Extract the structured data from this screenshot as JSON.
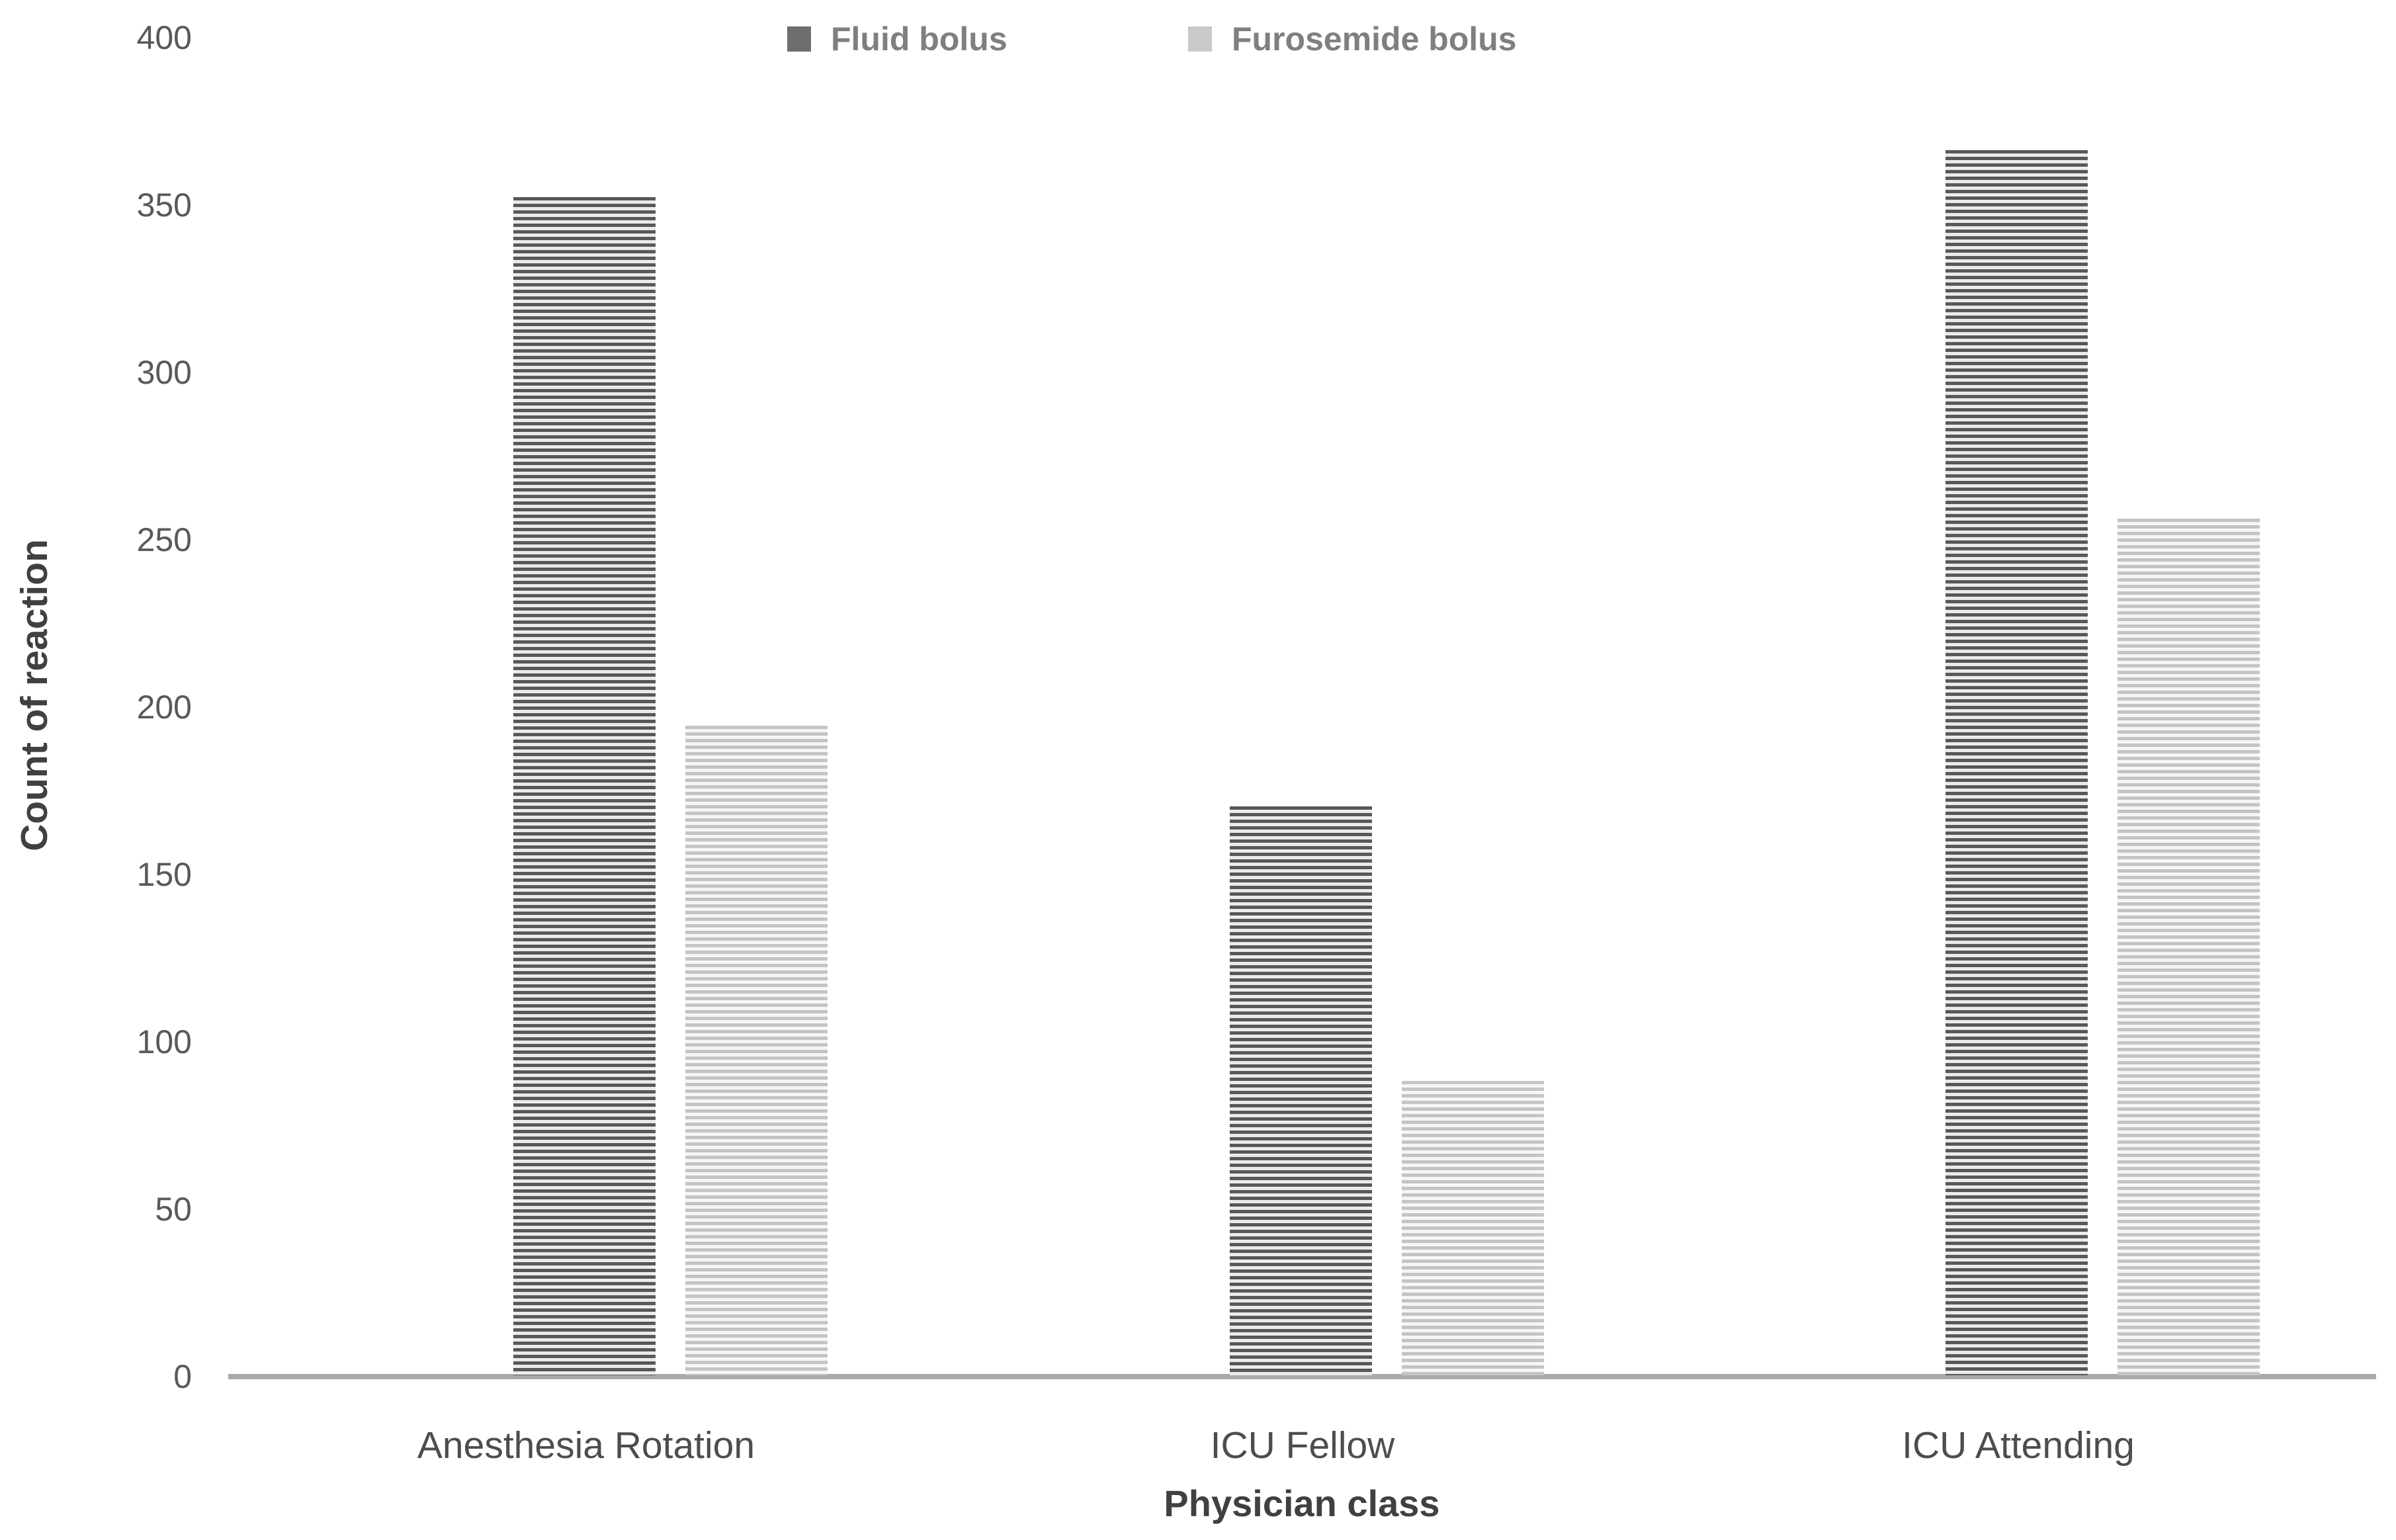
{
  "chart_data": {
    "type": "bar",
    "title": "",
    "xlabel": "Physician class",
    "ylabel": "Count of reaction",
    "categories": [
      "Anesthesia Rotation",
      "ICU Fellow",
      "ICU Attending"
    ],
    "series": [
      {
        "name": "Fluid bolus",
        "values": [
          352,
          170,
          366
        ]
      },
      {
        "name": "Furosemide bolus",
        "values": [
          194,
          88,
          256
        ]
      }
    ],
    "ylim": [
      0,
      400
    ],
    "y_ticks": [
      0,
      50,
      100,
      150,
      200,
      250,
      300,
      350,
      400
    ],
    "grid": false,
    "legend_position": "top"
  },
  "styles": {
    "fluid_stripe": "#585858",
    "fluid_gap": "#ebebeb",
    "fluid_swatch": "#6e6e6e",
    "furosemide_stripe": "#c4c4c4",
    "furosemide_gap": "#f6f6f6",
    "furosemide_swatch": "#c9c9c9",
    "axis_line": "#a9a9a9",
    "tick_text": "#595959",
    "category_text": "#4d4d4d",
    "axis_title_text": "#404040",
    "legend_text": "#7f7f7f"
  }
}
